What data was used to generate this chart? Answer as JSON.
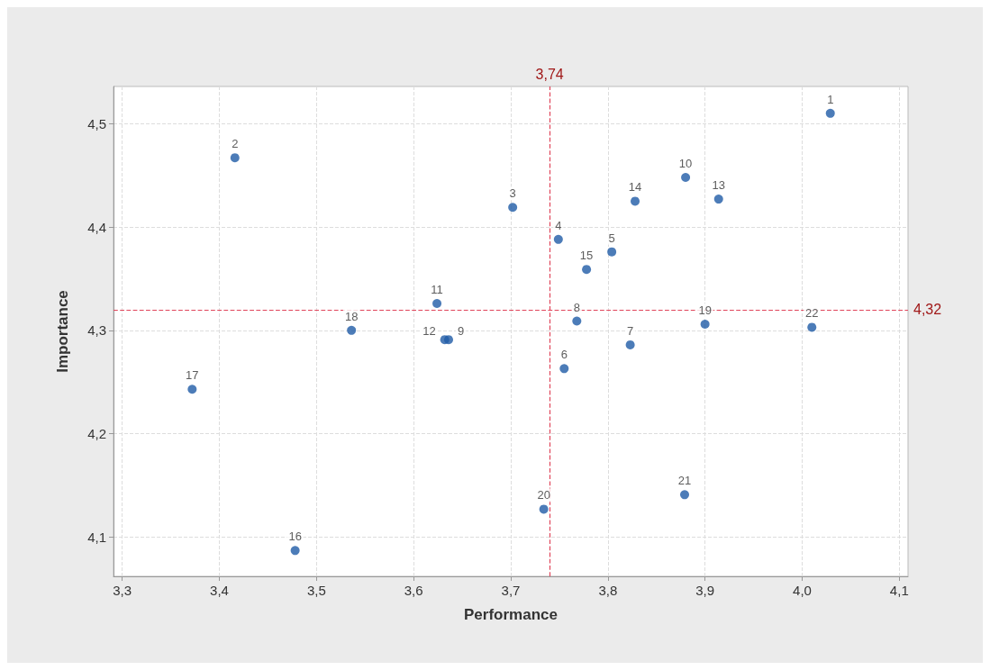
{
  "chart_data": {
    "type": "scatter",
    "xlabel": "Performance",
    "ylabel": "Importance",
    "x": [
      4.029,
      3.416,
      3.702,
      3.749,
      3.804,
      3.755,
      3.823,
      3.768,
      3.636,
      3.88,
      3.624,
      3.632,
      3.914,
      3.828,
      3.778,
      3.478,
      3.372,
      3.536,
      3.9,
      3.734,
      3.879,
      4.01
    ],
    "series": [
      {
        "color": "#1f5ba6",
        "values": [
          4.51,
          4.467,
          4.419,
          4.388,
          4.376,
          4.263,
          4.286,
          4.309,
          4.291,
          4.448,
          4.326,
          4.291,
          4.427,
          4.425,
          4.359,
          4.087,
          4.243,
          4.3,
          4.306,
          4.127,
          4.141,
          4.303
        ]
      }
    ],
    "annotations": [
      {
        "text": "1",
        "x": 4.029,
        "y": 4.51
      },
      {
        "text": "2",
        "x": 3.416,
        "y": 4.467
      },
      {
        "text": "3",
        "x": 3.702,
        "y": 4.419
      },
      {
        "text": "4",
        "x": 3.749,
        "y": 4.388
      },
      {
        "text": "5",
        "x": 3.804,
        "y": 4.376
      },
      {
        "text": "6",
        "x": 3.755,
        "y": 4.263
      },
      {
        "text": "7",
        "x": 3.823,
        "y": 4.286
      },
      {
        "text": "8",
        "x": 3.768,
        "y": 4.309
      },
      {
        "text": "9",
        "x": 3.636,
        "y": 4.291
      },
      {
        "text": "10",
        "x": 3.88,
        "y": 4.448
      },
      {
        "text": "11",
        "x": 3.624,
        "y": 4.326
      },
      {
        "text": "12",
        "x": 3.632,
        "y": 4.291
      },
      {
        "text": "13",
        "x": 3.914,
        "y": 4.427
      },
      {
        "text": "14",
        "x": 3.828,
        "y": 4.425
      },
      {
        "text": "15",
        "x": 3.778,
        "y": 4.359
      },
      {
        "text": "16",
        "x": 3.478,
        "y": 4.087
      },
      {
        "text": "17",
        "x": 3.372,
        "y": 4.243
      },
      {
        "text": "18",
        "x": 3.536,
        "y": 4.3
      },
      {
        "text": "19",
        "x": 3.9,
        "y": 4.306
      },
      {
        "text": "20",
        "x": 3.734,
        "y": 4.127
      },
      {
        "text": "21",
        "x": 3.879,
        "y": 4.141
      },
      {
        "text": "22",
        "x": 4.01,
        "y": 4.303
      }
    ],
    "ref_lines": [
      {
        "axis": "x",
        "value": 3.74,
        "label": "3,74",
        "color": "#e0455a",
        "line_style": "dashed"
      },
      {
        "axis": "y",
        "value": 4.32,
        "label": "4,32",
        "color": "#e0455a",
        "line_style": "dashed"
      }
    ],
    "xlim": [
      3.291,
      4.109
    ],
    "xticks": [
      {
        "value": 3.3,
        "label": "3,3"
      },
      {
        "value": 3.4,
        "label": "3,4"
      },
      {
        "value": 3.5,
        "label": "3,5"
      },
      {
        "value": 3.6,
        "label": "3,6"
      },
      {
        "value": 3.7,
        "label": "3,7"
      },
      {
        "value": 3.8,
        "label": "3,8"
      },
      {
        "value": 3.9,
        "label": "3,9"
      },
      {
        "value": 4.0,
        "label": "4,0"
      },
      {
        "value": 4.1,
        "label": "4,1"
      }
    ],
    "ylim": [
      4.062,
      4.536
    ],
    "yticks": [
      {
        "value": 4.1,
        "label": "4,1"
      },
      {
        "value": 4.2,
        "label": "4,2"
      },
      {
        "value": 4.3,
        "label": "4,3"
      },
      {
        "value": 4.4,
        "label": "4,4"
      },
      {
        "value": 4.5,
        "label": "4,5"
      }
    ],
    "grid": true,
    "marker": "circle"
  }
}
